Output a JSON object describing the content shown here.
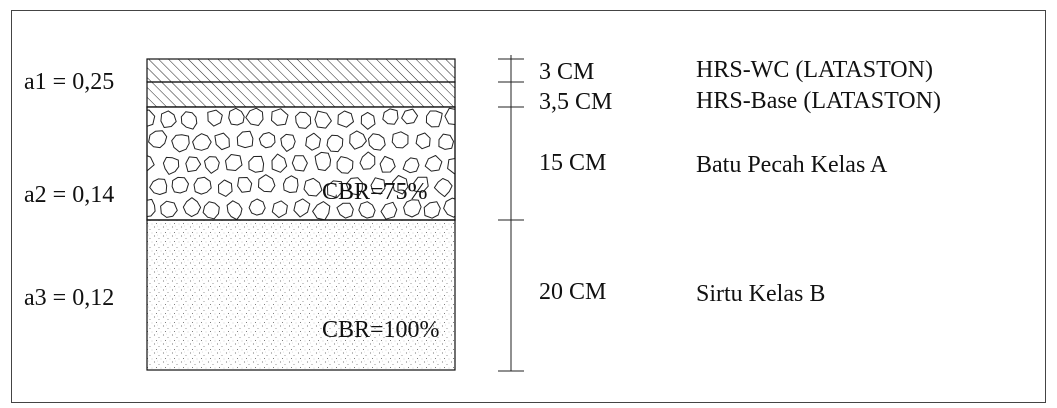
{
  "coefficients": {
    "a1": "a1 = 0,25",
    "a2": "a2 = 0,14",
    "a3": "a3 = 0,12"
  },
  "layers": [
    {
      "thickness": "3 CM",
      "material": "HRS-WC (LATASTON)"
    },
    {
      "thickness": "3,5 CM",
      "material": "HRS-Base (LATASTON)"
    },
    {
      "thickness": "15 CM",
      "material": "Batu Pecah Kelas A"
    },
    {
      "thickness": "20 CM",
      "material": "Sirtu Kelas B"
    }
  ],
  "cbr": {
    "base": "CBR=75%",
    "subbase": "CBR=100%"
  },
  "colors": {
    "line": "#111111",
    "hatch": "#333333",
    "background": "#ffffff"
  }
}
